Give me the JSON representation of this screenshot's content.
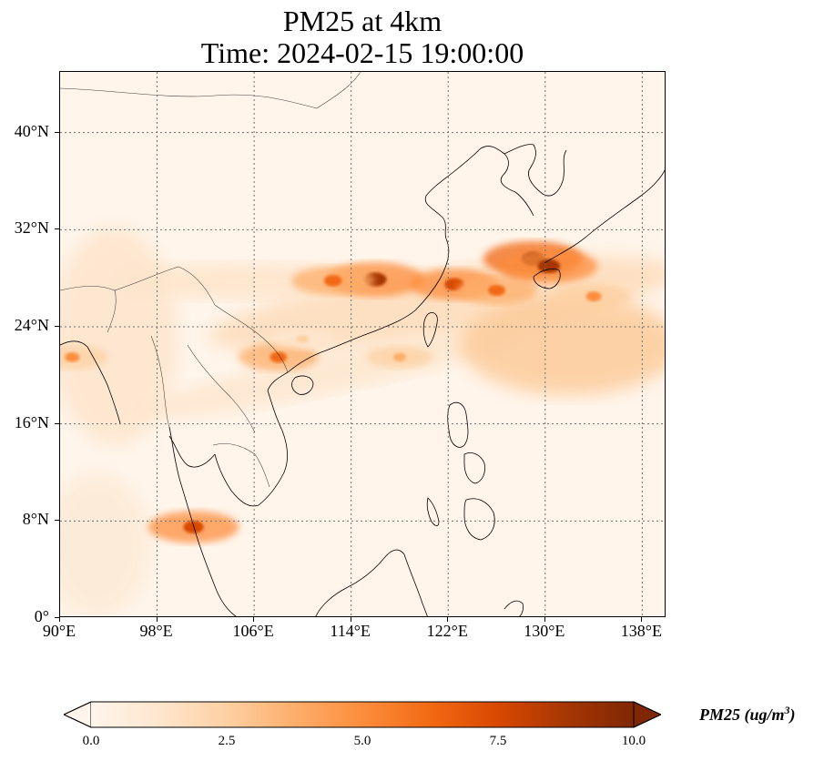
{
  "title_line1": "PM25 at 4km",
  "title_line2": "Time: 2024-02-15 19:00:00",
  "map": {
    "lon_range": [
      90,
      140
    ],
    "lat_range": [
      0,
      45
    ],
    "grid": "dotted",
    "colormap": "OrRd",
    "y_ticks": [
      {
        "label": "0°",
        "lat": 0
      },
      {
        "label": "8°N",
        "lat": 8
      },
      {
        "label": "16°N",
        "lat": 16
      },
      {
        "label": "24°N",
        "lat": 24
      },
      {
        "label": "32°N",
        "lat": 32
      },
      {
        "label": "40°N",
        "lat": 40
      }
    ],
    "x_ticks": [
      {
        "label": "90°E",
        "lon": 90
      },
      {
        "label": "98°E",
        "lon": 98
      },
      {
        "label": "106°E",
        "lon": 106
      },
      {
        "label": "114°E",
        "lon": 114
      },
      {
        "label": "122°E",
        "lon": 122
      },
      {
        "label": "130°E",
        "lon": 130
      },
      {
        "label": "138°E",
        "lon": 138
      }
    ]
  },
  "colorbar": {
    "label": "PM25 (ug/m",
    "label_sup": "3",
    "label_close": ")",
    "min": 0,
    "max": 10,
    "extend": "both",
    "ticks": [
      {
        "label": "0.0",
        "value": 0
      },
      {
        "label": "2.5",
        "value": 2.5
      },
      {
        "label": "5.0",
        "value": 5
      },
      {
        "label": "7.5",
        "value": 7.5
      },
      {
        "label": "10.0",
        "value": 10
      }
    ],
    "colors": [
      "#fff5eb",
      "#fee6ce",
      "#fdd0a2",
      "#fdae6b",
      "#fd8d3c",
      "#f16913",
      "#d94801",
      "#a63603",
      "#7f2704"
    ]
  },
  "plumes": [
    {
      "lon": 116.0,
      "lat": 27.9,
      "value": 9.2
    },
    {
      "lon": 112.5,
      "lat": 27.8,
      "value": 6.5
    },
    {
      "lon": 122.5,
      "lat": 27.5,
      "value": 7.5
    },
    {
      "lon": 126.0,
      "lat": 27.0,
      "value": 6.0
    },
    {
      "lon": 129.0,
      "lat": 29.6,
      "value": 9.6
    },
    {
      "lon": 130.3,
      "lat": 29.0,
      "value": 9.2
    },
    {
      "lon": 134.0,
      "lat": 26.5,
      "value": 5.0
    },
    {
      "lon": 108.0,
      "lat": 21.5,
      "value": 6.0
    },
    {
      "lon": 101.0,
      "lat": 7.5,
      "value": 8.0
    },
    {
      "lon": 91.0,
      "lat": 21.5,
      "value": 4.5
    },
    {
      "lon": 110.0,
      "lat": 23.0,
      "value": 3.0
    },
    {
      "lon": 118.0,
      "lat": 21.5,
      "value": 3.5
    }
  ]
}
